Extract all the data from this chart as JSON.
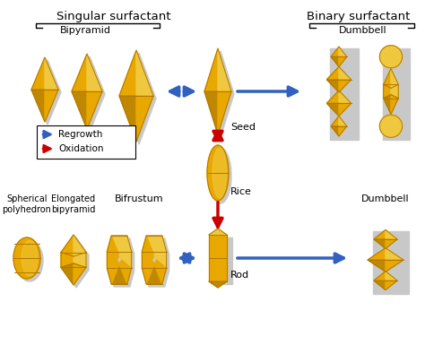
{
  "gold_face": "#E8A800",
  "gold_light": "#F0C840",
  "gold_edge": "#B07800",
  "gold_dark": "#C08800",
  "shadow": "#C8C8C8",
  "bg": "#FFFFFF",
  "blue": "#3060C0",
  "red": "#CC0000",
  "black": "#000000",
  "singular_label": "Singular surfactant",
  "binary_label": "Binary surfactant",
  "bipyramid_label": "Bipyramid",
  "dumbbell_top_label": "Dumbbell",
  "seed_label": "Seed",
  "rice_label": "Rice",
  "rod_label": "Rod",
  "spherical_label": "Spherical\npolyhedron",
  "elongated_label": "Elongated\nbipyramid",
  "bifrustum_label": "Bifrustum",
  "dumbbell_bot_label": "Dumbbell",
  "regrowth_label": "Regrowth",
  "oxidation_label": "Oxidation"
}
